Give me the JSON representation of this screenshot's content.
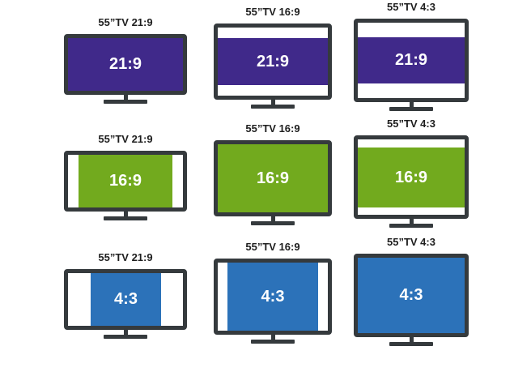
{
  "colors": {
    "frame": "#353a3d",
    "ratio_21_9": "#40298a",
    "ratio_16_9": "#72aa1e",
    "ratio_4_3": "#2c72b9",
    "letterbox": "#ffffff"
  },
  "rows": [
    {
      "content_ratio": "21:9",
      "tvs": [
        {
          "title": "55”TV 21:9",
          "tv_ratio": "21:9",
          "label": "21:9"
        },
        {
          "title": "55”TV 16:9",
          "tv_ratio": "16:9",
          "label": "21:9"
        },
        {
          "title": "55”TV 4:3",
          "tv_ratio": "4:3",
          "label": "21:9"
        }
      ]
    },
    {
      "content_ratio": "16:9",
      "tvs": [
        {
          "title": "55”TV 21:9",
          "tv_ratio": "21:9",
          "label": "16:9"
        },
        {
          "title": "55”TV 16:9",
          "tv_ratio": "16:9",
          "label": "16:9"
        },
        {
          "title": "55”TV 4:3",
          "tv_ratio": "4:3",
          "label": "16:9"
        }
      ]
    },
    {
      "content_ratio": "4:3",
      "tvs": [
        {
          "title": "55”TV 21:9",
          "tv_ratio": "21:9",
          "label": "4:3"
        },
        {
          "title": "55”TV 16:9",
          "tv_ratio": "16:9",
          "label": "4:3"
        },
        {
          "title": "55”TV 4:3",
          "tv_ratio": "4:3",
          "label": "4:3"
        }
      ]
    }
  ]
}
